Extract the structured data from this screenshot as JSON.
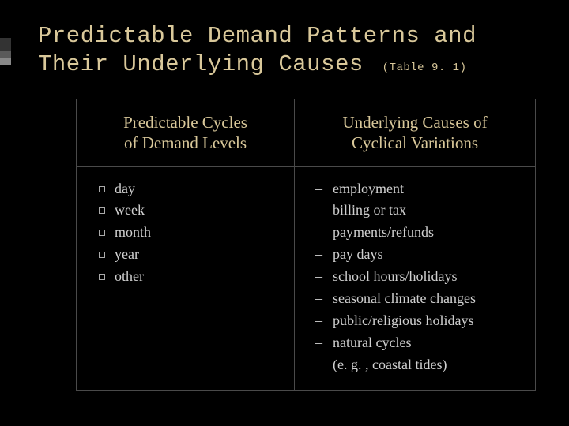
{
  "title_line1": "Predictable Demand Patterns and",
  "title_line2": "Their Underlying Causes",
  "table_ref": "(Table 9. 1)",
  "columns": {
    "left": {
      "header_line1": "Predictable Cycles",
      "header_line2": "of Demand Levels",
      "items": [
        "day",
        "week",
        "month",
        "year",
        "other"
      ]
    },
    "right": {
      "header_line1": "Underlying Causes of",
      "header_line2": "Cyclical Variations",
      "items": [
        "employment",
        "billing or tax payments/refunds",
        "pay days",
        "school hours/holidays",
        "seasonal climate changes",
        "public/religious holidays",
        "natural cycles (e. g. , coastal tides)"
      ]
    }
  },
  "colors": {
    "background": "#000000",
    "title_text": "#d9c89a",
    "body_text": "#cfcfcf",
    "border": "#4a4a4a"
  }
}
